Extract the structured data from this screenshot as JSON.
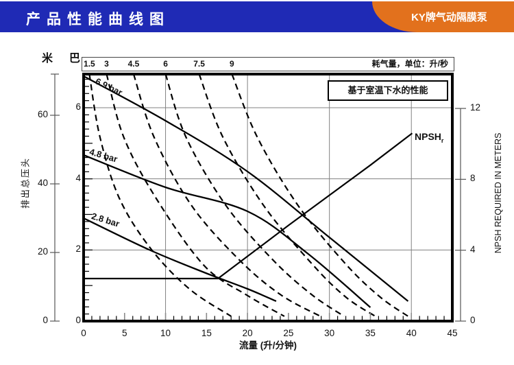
{
  "header": {
    "title": "产品性能曲线图",
    "brand": "KY牌气动隔膜泵",
    "bar_color": "#1f2ab5",
    "brand_bg": "#e2711d"
  },
  "chart_data": {
    "type": "line",
    "title": "产品性能曲线图",
    "note": "基于室温下水的性能",
    "x_axis": {
      "label": "流量 (升/分钟)",
      "min": 0,
      "max": 45,
      "ticks": [
        0,
        5,
        10,
        15,
        20,
        25,
        30,
        35,
        40,
        45
      ],
      "gridlines": [
        10,
        20,
        30,
        40
      ]
    },
    "y_left_meters": {
      "label": "排出总压头",
      "unit": "米",
      "min": 0,
      "max": 72,
      "ticks": [
        0,
        20,
        40,
        60
      ]
    },
    "y_left_bar": {
      "unit": "巴",
      "min": 0,
      "max": 6.95,
      "ticks": [
        0,
        2,
        4,
        6
      ],
      "gridlines": [
        2,
        4,
        6
      ]
    },
    "y_right": {
      "label": "NPSH REQUIRED IN METERS",
      "min": 0,
      "max": 12,
      "ticks": [
        0,
        4,
        8,
        12
      ]
    },
    "air_strip": {
      "label": "耗气量，单位：升/秒",
      "values": [
        "1.5",
        "3",
        "4.5",
        "6",
        "7.5",
        "9"
      ]
    },
    "series": [
      {
        "name": "6.9 bar",
        "air_pressure_bar": 6.9,
        "style": "solid",
        "axis": "left_m",
        "points": [
          [
            0,
            71.4
          ],
          [
            10,
            58.4
          ],
          [
            20,
            43.6
          ],
          [
            30,
            24.4
          ],
          [
            39.6,
            5.8
          ]
        ]
      },
      {
        "name": "4.8 bar",
        "air_pressure_bar": 4.8,
        "style": "solid",
        "axis": "left_m",
        "points": [
          [
            0,
            48.4
          ],
          [
            10,
            39.0
          ],
          [
            20,
            32.0
          ],
          [
            27.4,
            19.6
          ],
          [
            35.0,
            4.0
          ]
        ]
      },
      {
        "name": "2.8 bar",
        "air_pressure_bar": 2.8,
        "style": "solid",
        "axis": "left_m",
        "points": [
          [
            0,
            30.0
          ],
          [
            8,
            20.8
          ],
          [
            14.7,
            14.2
          ],
          [
            20,
            9.4
          ],
          [
            23.5,
            5.8
          ]
        ]
      },
      {
        "name": "NPSH",
        "subscript": "r",
        "style": "solid",
        "axis": "right_npsh",
        "points": [
          [
            0,
            2.4
          ],
          [
            16.4,
            2.4
          ],
          [
            25,
            5.4
          ],
          [
            35,
            8.8
          ],
          [
            40.1,
            10.6
          ]
        ]
      }
    ],
    "air_series": [
      {
        "label": "1.5",
        "points": [
          [
            0.7,
            72
          ],
          [
            2.0,
            53.6
          ],
          [
            4.4,
            35.6
          ],
          [
            8.3,
            20.8
          ],
          [
            13.0,
            9.2
          ],
          [
            18.0,
            1.4
          ]
        ]
      },
      {
        "label": "3",
        "points": [
          [
            2.8,
            72
          ],
          [
            4.9,
            53.6
          ],
          [
            8.9,
            35.6
          ],
          [
            14.7,
            16.2
          ],
          [
            19.9,
            7.6
          ],
          [
            24.5,
            1.4
          ]
        ]
      },
      {
        "label": "4.5",
        "points": [
          [
            6.1,
            72
          ],
          [
            8.6,
            53.6
          ],
          [
            13.2,
            33.6
          ],
          [
            19.1,
            17.6
          ],
          [
            24.1,
            7.6
          ],
          [
            28.9,
            1.4
          ]
        ]
      },
      {
        "label": "6",
        "points": [
          [
            10.0,
            72
          ],
          [
            12.5,
            53.6
          ],
          [
            17.4,
            33.6
          ],
          [
            23.2,
            17.6
          ],
          [
            27.9,
            7.6
          ],
          [
            31.8,
            1.4
          ]
        ]
      },
      {
        "label": "7.5",
        "points": [
          [
            14.1,
            72
          ],
          [
            17.0,
            53.6
          ],
          [
            22.0,
            33.6
          ],
          [
            27.9,
            16.6
          ],
          [
            32.0,
            7.0
          ],
          [
            35.6,
            1.4
          ]
        ]
      },
      {
        "label": "9",
        "points": [
          [
            18.1,
            72
          ],
          [
            21.2,
            53.6
          ],
          [
            26.2,
            33.6
          ],
          [
            32.0,
            16.6
          ],
          [
            36.2,
            7.0
          ],
          [
            39.6,
            1.4
          ]
        ]
      }
    ]
  }
}
